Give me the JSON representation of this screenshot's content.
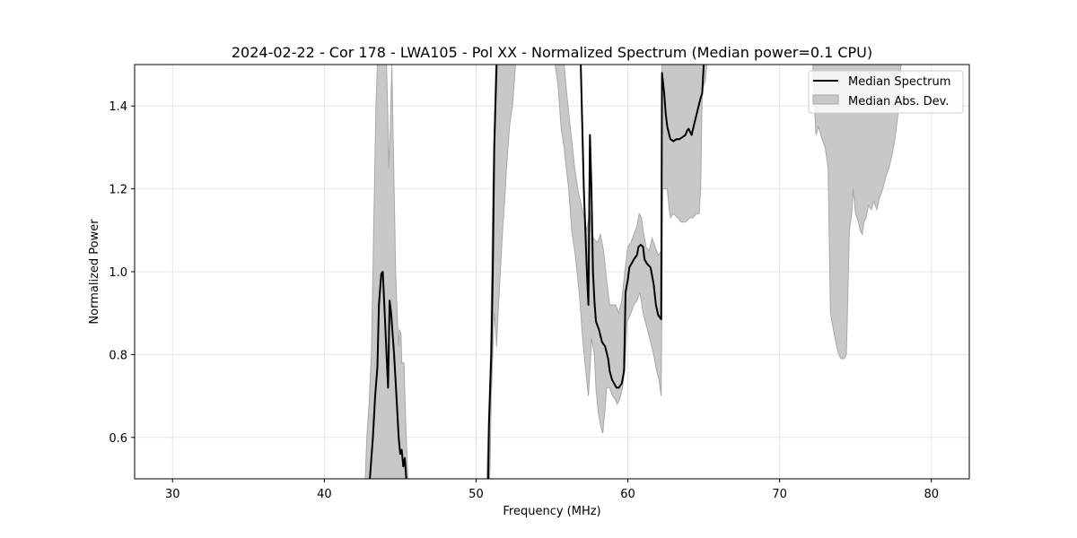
{
  "chart_data": {
    "type": "line",
    "title": "2024-02-22 - Cor 178 - LWA105 - Pol XX - Normalized Spectrum (Median power=0.1 CPU)",
    "xlabel": "Frequency (MHz)",
    "ylabel": "Normalized Power",
    "xlim": [
      27.5,
      82.5
    ],
    "ylim": [
      0.5,
      1.5
    ],
    "xticks": [
      30,
      40,
      50,
      60,
      70,
      80
    ],
    "yticks": [
      0.6,
      0.8,
      1.0,
      1.2,
      1.4
    ],
    "grid": true,
    "legend_position": "top-right",
    "legend": {
      "line_label": "Median Spectrum",
      "band_label": "Median Abs. Dev."
    },
    "colors": {
      "line": "#000000",
      "band_fill": "#c8c8c8",
      "band_edge": "#a8a8a8",
      "grid": "#e6e6e6"
    },
    "series": [
      {
        "name": "Median Spectrum",
        "segments": [
          [
            [
              43.0,
              0.5
            ],
            [
              43.2,
              0.6
            ],
            [
              43.35,
              0.7
            ],
            [
              43.5,
              0.77
            ],
            [
              43.6,
              0.92
            ],
            [
              43.75,
              0.995
            ],
            [
              43.85,
              1.0
            ],
            [
              43.95,
              0.92
            ],
            [
              44.1,
              0.8
            ],
            [
              44.2,
              0.72
            ],
            [
              44.3,
              0.93
            ],
            [
              44.4,
              0.9
            ],
            [
              44.6,
              0.8
            ],
            [
              44.75,
              0.7
            ],
            [
              44.9,
              0.6
            ],
            [
              45.0,
              0.56
            ],
            [
              45.1,
              0.57
            ],
            [
              45.2,
              0.53
            ],
            [
              45.3,
              0.55
            ],
            [
              45.4,
              0.5
            ]
          ],
          [
            [
              50.8,
              0.5
            ],
            [
              50.85,
              0.63
            ],
            [
              51.0,
              0.8
            ],
            [
              51.1,
              1.0
            ],
            [
              51.2,
              1.3
            ],
            [
              51.35,
              1.5
            ]
          ],
          [
            [
              56.9,
              1.5
            ],
            [
              57.1,
              1.2
            ],
            [
              57.3,
              1.0
            ],
            [
              57.4,
              0.92
            ],
            [
              57.5,
              1.33
            ],
            [
              57.6,
              1.2
            ],
            [
              57.7,
              1.0
            ],
            [
              57.8,
              0.93
            ],
            [
              57.9,
              0.88
            ],
            [
              58.1,
              0.86
            ],
            [
              58.3,
              0.83
            ],
            [
              58.5,
              0.82
            ],
            [
              58.7,
              0.79
            ],
            [
              58.8,
              0.76
            ],
            [
              58.95,
              0.74
            ],
            [
              59.1,
              0.73
            ],
            [
              59.25,
              0.72
            ],
            [
              59.4,
              0.72
            ],
            [
              59.6,
              0.73
            ],
            [
              59.75,
              0.76
            ],
            [
              59.85,
              0.95
            ],
            [
              60.0,
              0.98
            ],
            [
              60.1,
              1.01
            ],
            [
              60.25,
              1.02
            ],
            [
              60.4,
              1.03
            ],
            [
              60.6,
              1.04
            ],
            [
              60.7,
              1.06
            ],
            [
              60.85,
              1.065
            ],
            [
              61.0,
              1.06
            ],
            [
              61.1,
              1.03
            ],
            [
              61.25,
              1.02
            ],
            [
              61.5,
              1.01
            ],
            [
              61.7,
              0.97
            ],
            [
              61.85,
              0.92
            ],
            [
              62.0,
              0.895
            ],
            [
              62.2,
              0.885
            ],
            [
              62.25,
              1.48
            ],
            [
              62.4,
              1.43
            ],
            [
              62.5,
              1.38
            ],
            [
              62.6,
              1.35
            ],
            [
              62.8,
              1.32
            ],
            [
              63.0,
              1.315
            ],
            [
              63.2,
              1.32
            ],
            [
              63.4,
              1.32
            ],
            [
              63.6,
              1.325
            ],
            [
              63.8,
              1.33
            ],
            [
              63.9,
              1.34
            ],
            [
              64.0,
              1.345
            ],
            [
              64.2,
              1.33
            ],
            [
              64.4,
              1.36
            ],
            [
              64.6,
              1.39
            ],
            [
              64.8,
              1.42
            ],
            [
              64.9,
              1.43
            ],
            [
              65.0,
              1.5
            ]
          ]
        ]
      },
      {
        "name": "Median Abs. Dev.",
        "polygons": [
          [
            [
              42.7,
              0.5
            ],
            [
              42.8,
              0.6
            ],
            [
              42.95,
              0.68
            ],
            [
              43.1,
              0.8
            ],
            [
              43.2,
              1.0
            ],
            [
              43.3,
              1.2
            ],
            [
              43.4,
              1.4
            ],
            [
              43.5,
              1.5
            ],
            [
              44.1,
              1.5
            ],
            [
              44.2,
              1.35
            ],
            [
              44.25,
              1.25
            ],
            [
              44.35,
              1.35
            ],
            [
              44.45,
              1.5
            ],
            [
              44.55,
              1.3
            ],
            [
              44.7,
              1.0
            ],
            [
              44.8,
              0.9
            ],
            [
              44.9,
              0.82
            ],
            [
              44.95,
              0.86
            ],
            [
              45.05,
              0.85
            ],
            [
              45.1,
              0.78
            ],
            [
              45.25,
              0.78
            ],
            [
              45.35,
              0.65
            ],
            [
              45.5,
              0.5
            ]
          ],
          [
            [
              50.7,
              0.5
            ],
            [
              50.95,
              0.8
            ],
            [
              51.1,
              1.2
            ],
            [
              51.3,
              1.5
            ],
            [
              55.8,
              1.5
            ],
            [
              56.0,
              1.42
            ],
            [
              56.2,
              1.35
            ],
            [
              56.5,
              1.25
            ],
            [
              56.7,
              1.2
            ],
            [
              57.0,
              1.15
            ],
            [
              57.3,
              1.1
            ],
            [
              57.5,
              1.15
            ],
            [
              57.6,
              1.1
            ],
            [
              57.75,
              1.08
            ],
            [
              58.0,
              1.07
            ],
            [
              58.2,
              1.09
            ],
            [
              58.4,
              1.05
            ],
            [
              58.6,
              0.98
            ],
            [
              58.8,
              0.92
            ],
            [
              59.0,
              0.92
            ],
            [
              59.2,
              0.92
            ],
            [
              59.4,
              0.9
            ],
            [
              59.6,
              0.93
            ],
            [
              59.8,
              1.0
            ],
            [
              60.0,
              1.06
            ],
            [
              60.2,
              1.07
            ],
            [
              60.4,
              1.09
            ],
            [
              60.6,
              1.11
            ],
            [
              60.75,
              1.14
            ],
            [
              60.9,
              1.13
            ],
            [
              61.0,
              1.1
            ],
            [
              61.2,
              1.06
            ],
            [
              61.4,
              1.05
            ],
            [
              61.6,
              1.08
            ],
            [
              61.8,
              1.06
            ],
            [
              62.0,
              1.04
            ],
            [
              62.2,
              1.05
            ],
            [
              62.25,
              1.5
            ],
            [
              65.2,
              1.5
            ],
            [
              65.1,
              1.46
            ],
            [
              64.9,
              1.44
            ],
            [
              64.8,
              1.2
            ],
            [
              64.7,
              1.14
            ],
            [
              64.5,
              1.14
            ],
            [
              64.3,
              1.13
            ],
            [
              64.1,
              1.13
            ],
            [
              63.8,
              1.12
            ],
            [
              63.5,
              1.12
            ],
            [
              63.3,
              1.13
            ],
            [
              63.0,
              1.14
            ],
            [
              62.8,
              1.13
            ],
            [
              62.7,
              1.16
            ],
            [
              62.6,
              1.2
            ],
            [
              62.3,
              1.2
            ],
            [
              62.2,
              0.7
            ],
            [
              62.05,
              0.74
            ],
            [
              61.9,
              0.76
            ],
            [
              61.7,
              0.8
            ],
            [
              61.5,
              0.83
            ],
            [
              61.3,
              0.86
            ],
            [
              61.0,
              0.9
            ],
            [
              60.8,
              0.95
            ],
            [
              60.6,
              0.93
            ],
            [
              60.4,
              0.92
            ],
            [
              60.2,
              0.9
            ],
            [
              59.95,
              0.88
            ],
            [
              59.8,
              0.77
            ],
            [
              59.65,
              0.72
            ],
            [
              59.45,
              0.69
            ],
            [
              59.3,
              0.68
            ],
            [
              59.2,
              0.69
            ],
            [
              59.0,
              0.7
            ],
            [
              58.8,
              0.72
            ],
            [
              58.6,
              0.72
            ],
            [
              58.5,
              0.67
            ],
            [
              58.35,
              0.61
            ],
            [
              58.2,
              0.63
            ],
            [
              58.05,
              0.66
            ],
            [
              57.9,
              0.72
            ],
            [
              57.8,
              0.8
            ],
            [
              57.6,
              0.84
            ],
            [
              57.5,
              0.76
            ],
            [
              57.4,
              0.7
            ],
            [
              57.2,
              0.77
            ],
            [
              57.0,
              0.85
            ],
            [
              56.8,
              0.95
            ],
            [
              56.5,
              1.05
            ],
            [
              56.3,
              1.1
            ],
            [
              56.1,
              1.2
            ],
            [
              55.8,
              1.3
            ],
            [
              55.6,
              1.35
            ],
            [
              55.4,
              1.45
            ],
            [
              55.2,
              1.5
            ],
            [
              52.6,
              1.5
            ],
            [
              52.4,
              1.4
            ],
            [
              52.2,
              1.35
            ],
            [
              52.0,
              1.25
            ],
            [
              51.9,
              1.18
            ],
            [
              51.75,
              1.1
            ],
            [
              51.6,
              1.0
            ],
            [
              51.45,
              0.9
            ],
            [
              51.35,
              0.82
            ],
            [
              51.3,
              0.86
            ],
            [
              51.2,
              0.9
            ],
            [
              51.0,
              0.7
            ],
            [
              50.9,
              0.5
            ]
          ],
          [
            [
              72.2,
              1.5
            ],
            [
              72.3,
              1.4
            ],
            [
              72.4,
              1.33
            ],
            [
              72.55,
              1.35
            ],
            [
              72.65,
              1.34
            ],
            [
              72.8,
              1.32
            ],
            [
              73.0,
              1.3
            ],
            [
              73.2,
              1.25
            ],
            [
              73.35,
              0.9
            ],
            [
              73.5,
              0.87
            ],
            [
              73.7,
              0.83
            ],
            [
              73.9,
              0.8
            ],
            [
              74.05,
              0.79
            ],
            [
              74.25,
              0.79
            ],
            [
              74.4,
              0.8
            ],
            [
              74.5,
              0.94
            ],
            [
              74.6,
              1.1
            ],
            [
              74.75,
              1.14
            ],
            [
              74.85,
              1.2
            ],
            [
              75.0,
              1.14
            ],
            [
              75.2,
              1.12
            ],
            [
              75.3,
              1.1
            ],
            [
              75.45,
              1.09
            ],
            [
              75.55,
              1.12
            ],
            [
              75.7,
              1.13
            ],
            [
              75.85,
              1.16
            ],
            [
              76.05,
              1.15
            ],
            [
              76.2,
              1.17
            ],
            [
              76.4,
              1.15
            ],
            [
              76.6,
              1.18
            ],
            [
              76.8,
              1.2
            ],
            [
              77.0,
              1.23
            ],
            [
              77.2,
              1.25
            ],
            [
              77.4,
              1.28
            ],
            [
              77.6,
              1.32
            ],
            [
              77.8,
              1.38
            ],
            [
              78.0,
              1.5
            ]
          ]
        ]
      }
    ]
  }
}
